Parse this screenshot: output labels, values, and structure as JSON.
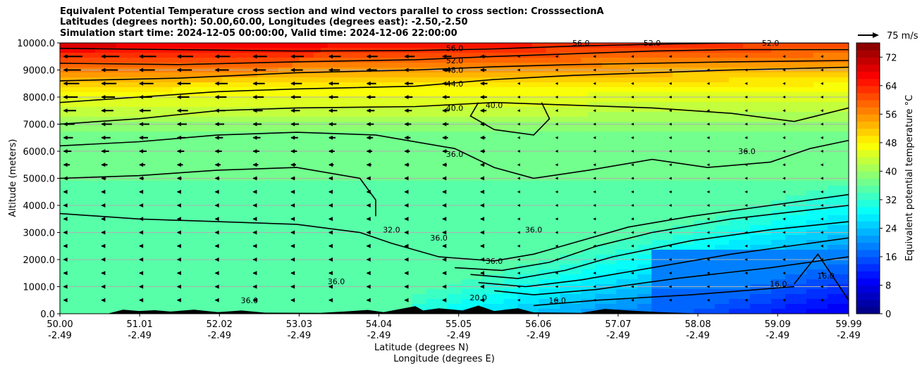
{
  "chart_data": {
    "type": "contourf",
    "title_lines": [
      "Equivalent Potential Temperature cross section and wind vectors parallel to cross section: CrosssectionA",
      "Latitudes (degrees north): 50.00,60.00, Longitudes (degrees east): -2.50,-2.50",
      "Simulation start time: 2024-12-05 00:00:00, Valid time: 2024-12-06 22:00:00"
    ],
    "xlabel_line1": "Latitude (degrees N)",
    "xlabel_line2": "Longitude (degrees E)",
    "ylabel": "Altitude (meters)",
    "xlim": [
      50.0,
      59.99
    ],
    "ylim": [
      0,
      10000
    ],
    "x_ticks": [
      {
        "lat": "50.00",
        "lon": "-2.49",
        "value": 50.0
      },
      {
        "lat": "51.01",
        "lon": "-2.49",
        "value": 51.01
      },
      {
        "lat": "52.02",
        "lon": "-2.49",
        "value": 52.02
      },
      {
        "lat": "53.03",
        "lon": "-2.49",
        "value": 53.03
      },
      {
        "lat": "54.04",
        "lon": "-2.49",
        "value": 54.04
      },
      {
        "lat": "55.05",
        "lon": "-2.49",
        "value": 55.05
      },
      {
        "lat": "56.06",
        "lon": "-2.49",
        "value": 56.06
      },
      {
        "lat": "57.07",
        "lon": "-2.49",
        "value": 57.07
      },
      {
        "lat": "58.08",
        "lon": "-2.49",
        "value": 58.08
      },
      {
        "lat": "59.09",
        "lon": "-2.49",
        "value": 59.09
      },
      {
        "lat": "59.99",
        "lon": "-2.49",
        "value": 59.99
      }
    ],
    "y_ticks": [
      {
        "label": "0.0",
        "value": 0
      },
      {
        "label": "1000.0",
        "value": 1000
      },
      {
        "label": "2000.0",
        "value": 2000
      },
      {
        "label": "3000.0",
        "value": 3000
      },
      {
        "label": "4000.0",
        "value": 4000
      },
      {
        "label": "5000.0",
        "value": 5000
      },
      {
        "label": "6000.0",
        "value": 6000
      },
      {
        "label": "7000.0",
        "value": 7000
      },
      {
        "label": "8000.0",
        "value": 8000
      },
      {
        "label": "9000.0",
        "value": 9000
      },
      {
        "label": "10000.0",
        "value": 10000
      }
    ],
    "colorbar": {
      "label": "Equivalent potential temperature $^\\circ$C",
      "label_text": "Equivalent potential temperature °C",
      "min": 0,
      "max": 76,
      "step": 2,
      "ticks": [
        {
          "label": "0",
          "value": 0
        },
        {
          "label": "8",
          "value": 8
        },
        {
          "label": "16",
          "value": 16
        },
        {
          "label": "24",
          "value": 24
        },
        {
          "label": "32",
          "value": 32
        },
        {
          "label": "40",
          "value": 40
        },
        {
          "label": "48",
          "value": 48
        },
        {
          "label": "56",
          "value": 56
        },
        {
          "label": "64",
          "value": 64
        },
        {
          "label": "72",
          "value": 72
        }
      ]
    },
    "quiver_key": {
      "label": "75 m/s",
      "speed": 75
    },
    "contour_lines": [
      {
        "level": 56,
        "pts": [
          [
            50.0,
            9800
          ],
          [
            51.5,
            9750
          ],
          [
            53.0,
            9700
          ],
          [
            54.5,
            9720
          ],
          [
            55.5,
            9780
          ],
          [
            56.5,
            9880
          ],
          [
            57.5,
            9950
          ],
          [
            58.5,
            10000
          ],
          [
            59.99,
            10000
          ]
        ]
      },
      {
        "level": 52,
        "pts": [
          [
            50.0,
            9250
          ],
          [
            51.5,
            9200
          ],
          [
            53.0,
            9300
          ],
          [
            54.5,
            9380
          ],
          [
            55.5,
            9500
          ],
          [
            56.5,
            9600
          ],
          [
            57.5,
            9700
          ],
          [
            58.5,
            9750
          ],
          [
            59.99,
            9750
          ]
        ]
      },
      {
        "level": 48,
        "pts": [
          [
            50.0,
            8600
          ],
          [
            51.5,
            8700
          ],
          [
            53.0,
            8900
          ],
          [
            54.5,
            9000
          ],
          [
            55.5,
            9120
          ],
          [
            56.5,
            9200
          ],
          [
            57.5,
            9250
          ],
          [
            58.5,
            9300
          ],
          [
            59.99,
            9350
          ]
        ]
      },
      {
        "level": 44,
        "pts": [
          [
            50.0,
            7800
          ],
          [
            51.0,
            8000
          ],
          [
            52.0,
            8200
          ],
          [
            53.0,
            8300
          ],
          [
            54.5,
            8400
          ],
          [
            55.5,
            8650
          ],
          [
            56.5,
            8800
          ],
          [
            57.5,
            8900
          ],
          [
            58.5,
            9000
          ],
          [
            59.99,
            9100
          ]
        ]
      },
      {
        "level": 40,
        "pts": [
          [
            50.0,
            7000
          ],
          [
            51.0,
            7200
          ],
          [
            52.0,
            7500
          ],
          [
            53.0,
            7600
          ],
          [
            54.5,
            7650
          ],
          [
            55.5,
            7800
          ],
          [
            56.5,
            7700
          ],
          [
            57.5,
            7600
          ],
          [
            58.5,
            7400
          ],
          [
            59.3,
            7100
          ],
          [
            59.99,
            7600
          ]
        ]
      },
      {
        "level": 40,
        "pts": [
          [
            55.3,
            7800
          ],
          [
            55.2,
            7300
          ],
          [
            55.5,
            6800
          ],
          [
            56.0,
            6600
          ],
          [
            56.2,
            7200
          ],
          [
            56.1,
            7800
          ]
        ]
      },
      {
        "level": 36,
        "pts": [
          [
            50.0,
            6200
          ],
          [
            51.0,
            6350
          ],
          [
            52.0,
            6600
          ],
          [
            53.0,
            6700
          ],
          [
            54.0,
            6600
          ],
          [
            55.0,
            6100
          ],
          [
            55.5,
            5400
          ],
          [
            56.0,
            5000
          ],
          [
            56.7,
            5300
          ],
          [
            57.5,
            5700
          ],
          [
            58.2,
            5400
          ],
          [
            59.0,
            5600
          ],
          [
            59.5,
            6100
          ],
          [
            59.99,
            6400
          ]
        ]
      },
      {
        "level": 36,
        "pts": [
          [
            50.0,
            5000
          ],
          [
            51.0,
            5100
          ],
          [
            52.0,
            5300
          ],
          [
            53.0,
            5400
          ],
          [
            53.8,
            5000
          ],
          [
            54.0,
            4200
          ],
          [
            54.0,
            3600
          ]
        ]
      },
      {
        "level": 32,
        "pts": [
          [
            50.0,
            3700
          ],
          [
            51.0,
            3500
          ],
          [
            52.0,
            3400
          ],
          [
            53.0,
            3300
          ],
          [
            53.8,
            3000
          ],
          [
            54.2,
            2600
          ],
          [
            54.8,
            2100
          ],
          [
            55.5,
            1950
          ],
          [
            56.0,
            2200
          ],
          [
            56.6,
            2700
          ],
          [
            57.2,
            3200
          ],
          [
            58.0,
            3600
          ],
          [
            59.0,
            4000
          ],
          [
            59.99,
            4400
          ]
        ]
      },
      {
        "level": 30,
        "pts": [
          [
            55.0,
            1700
          ],
          [
            55.6,
            1600
          ],
          [
            56.2,
            1900
          ],
          [
            56.8,
            2500
          ],
          [
            57.5,
            3000
          ],
          [
            58.5,
            3500
          ],
          [
            59.99,
            4000
          ]
        ]
      },
      {
        "level": 28,
        "pts": [
          [
            55.2,
            1450
          ],
          [
            55.8,
            1300
          ],
          [
            56.4,
            1600
          ],
          [
            57.0,
            2100
          ],
          [
            58.0,
            2700
          ],
          [
            59.0,
            3100
          ],
          [
            59.99,
            3400
          ]
        ]
      },
      {
        "level": 24,
        "pts": [
          [
            55.3,
            1150
          ],
          [
            55.9,
            1000
          ],
          [
            56.6,
            1250
          ],
          [
            57.5,
            1700
          ],
          [
            58.5,
            2200
          ],
          [
            59.99,
            2800
          ]
        ]
      },
      {
        "level": 20,
        "pts": [
          [
            55.5,
            850
          ],
          [
            56.0,
            700
          ],
          [
            56.8,
            900
          ],
          [
            57.8,
            1300
          ],
          [
            59.0,
            1700
          ],
          [
            59.99,
            2100
          ]
        ]
      },
      {
        "level": 16,
        "pts": [
          [
            56.0,
            300
          ],
          [
            56.8,
            500
          ],
          [
            58.0,
            700
          ],
          [
            59.3,
            1000
          ]
        ]
      },
      {
        "level": 16,
        "pts": [
          [
            59.3,
            1100
          ],
          [
            59.6,
            2200
          ],
          [
            59.99,
            500
          ]
        ]
      }
    ],
    "contour_labels": [
      {
        "text": "56.0",
        "x": 55.0,
        "y": 9800
      },
      {
        "text": "52.0",
        "x": 55.0,
        "y": 9350
      },
      {
        "text": "48.0",
        "x": 55.0,
        "y": 9000
      },
      {
        "text": "44.0",
        "x": 55.0,
        "y": 8500
      },
      {
        "text": "40.0",
        "x": 55.0,
        "y": 7600
      },
      {
        "text": "40.0",
        "x": 55.5,
        "y": 7700
      },
      {
        "text": "36.0",
        "x": 55.0,
        "y": 5900
      },
      {
        "text": "36.0",
        "x": 58.7,
        "y": 6000
      },
      {
        "text": "32.0",
        "x": 54.2,
        "y": 3100
      },
      {
        "text": "36.0",
        "x": 54.8,
        "y": 2800
      },
      {
        "text": "36.0",
        "x": 56.0,
        "y": 3100
      },
      {
        "text": "36.0",
        "x": 55.5,
        "y": 1950
      },
      {
        "text": "20.0",
        "x": 55.3,
        "y": 600
      },
      {
        "text": "16.0",
        "x": 56.3,
        "y": 500
      },
      {
        "text": "16.0",
        "x": 59.1,
        "y": 1100
      },
      {
        "text": "16.0",
        "x": 59.7,
        "y": 1400
      },
      {
        "text": "36.0",
        "x": 53.5,
        "y": 1200
      },
      {
        "text": "36.0",
        "x": 52.4,
        "y": 500
      },
      {
        "text": "56.0",
        "x": 56.6,
        "y": 10000
      },
      {
        "text": "52.0",
        "x": 57.5,
        "y": 10000
      },
      {
        "text": "52.0",
        "x": 59.0,
        "y": 10000
      }
    ]
  }
}
